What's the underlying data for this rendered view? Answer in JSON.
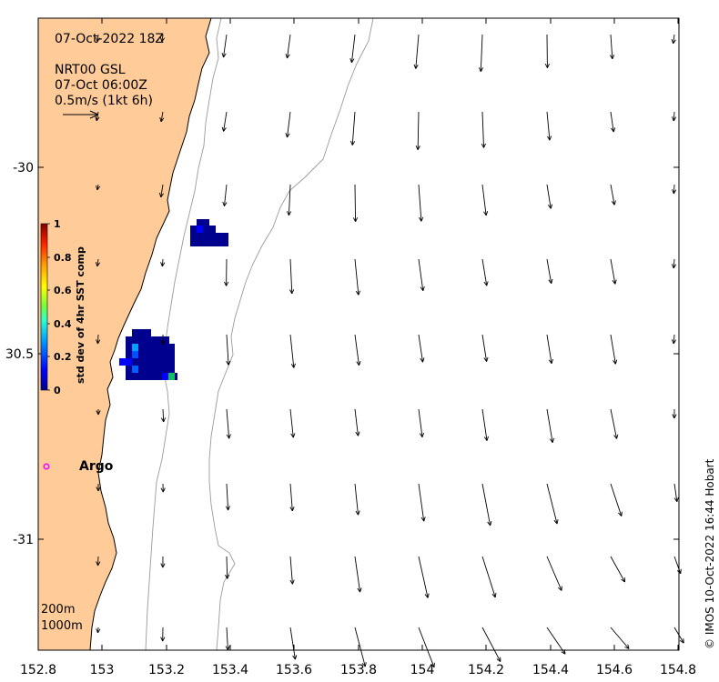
{
  "header": {
    "datetime": "07-Oct-2022 18Z",
    "product": "NRT00 GSL",
    "product_time": "07-Oct 06:00Z",
    "scale_label": "0.5m/s (1kt 6h)"
  },
  "axes": {
    "x_ticks": [
      "152.8",
      "153",
      "153.2",
      "153.4",
      "153.6",
      "153.8",
      "154",
      "154.2",
      "154.4",
      "154.6",
      "154.8"
    ],
    "y_ticks": [
      "-30",
      "30.5",
      "-31"
    ],
    "xlim": [
      152.8,
      154.8
    ],
    "ylim": [
      -31.3,
      -29.6
    ]
  },
  "colorbar": {
    "title": "std dev of 4hr SST comp",
    "ticks": [
      "1",
      "0.8",
      "0.6",
      "0.4",
      "0.2",
      "0"
    ],
    "colors": [
      "#00008f",
      "#0000ff",
      "#00a0ff",
      "#30ffd0",
      "#a0ff60",
      "#ffff00",
      "#ffa000",
      "#ff2000",
      "#800000"
    ]
  },
  "argo": {
    "label": "Argo",
    "color": "#ff00ff"
  },
  "isobaths": {
    "shallow": "200m",
    "deep": "1000m"
  },
  "copyright": "© IMOS 10-Oct-2022 16:44 Hobart",
  "colors": {
    "land": "#ffcc99",
    "isobath": "#9a9a9a",
    "arrow": "#000000"
  }
}
